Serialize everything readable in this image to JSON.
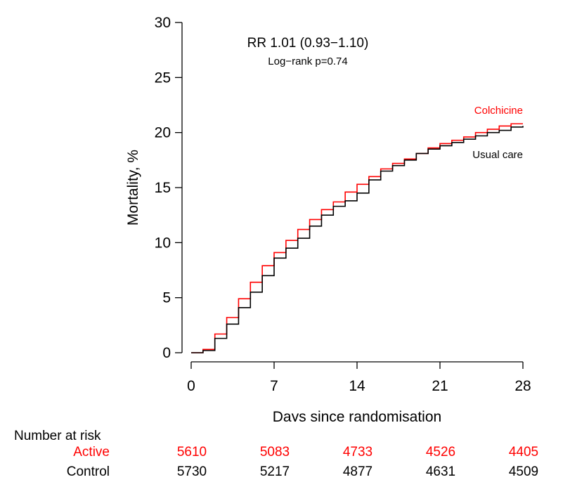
{
  "chart_data": {
    "type": "line",
    "xlabel": "Days since randomisation",
    "ylabel": "Mortality, %",
    "xlim": [
      0,
      28
    ],
    "ylim": [
      0,
      30
    ],
    "x_ticks": [
      0,
      7,
      14,
      21,
      28
    ],
    "y_ticks": [
      0,
      5,
      10,
      15,
      20,
      25,
      30
    ],
    "annotation_main": "RR 1.01 (0.93−1.10)",
    "annotation_sub": "Log−rank p=0.74",
    "step": true,
    "grid": false,
    "series": [
      {
        "name": "Colchicine",
        "color": "#ff0000",
        "x": [
          0,
          1,
          2,
          3,
          4,
          5,
          6,
          7,
          8,
          9,
          10,
          11,
          12,
          13,
          14,
          15,
          16,
          17,
          18,
          19,
          20,
          21,
          22,
          23,
          24,
          25,
          26,
          27,
          28
        ],
        "values": [
          0,
          0.3,
          1.7,
          3.2,
          4.9,
          6.4,
          7.9,
          9.1,
          10.2,
          11.2,
          12.1,
          13.0,
          13.7,
          14.6,
          15.3,
          16.0,
          16.7,
          17.2,
          17.6,
          18.1,
          18.6,
          19.0,
          19.3,
          19.6,
          20.0,
          20.3,
          20.6,
          20.8,
          20.8
        ]
      },
      {
        "name": "Usual care",
        "color": "#000000",
        "x": [
          0,
          1,
          2,
          3,
          4,
          5,
          6,
          7,
          8,
          9,
          10,
          11,
          12,
          13,
          14,
          15,
          16,
          17,
          18,
          19,
          20,
          21,
          22,
          23,
          24,
          25,
          26,
          27,
          28
        ],
        "values": [
          0,
          0.2,
          1.3,
          2.6,
          4.1,
          5.5,
          7.0,
          8.6,
          9.5,
          10.4,
          11.5,
          12.5,
          13.3,
          13.8,
          14.5,
          15.7,
          16.5,
          17.0,
          17.5,
          18.1,
          18.5,
          18.8,
          19.1,
          19.4,
          19.7,
          20.0,
          20.2,
          20.5,
          20.6
        ]
      }
    ]
  },
  "risk_table": {
    "title": "Number at risk",
    "rows": [
      {
        "label": "Active",
        "color": "#ff0000",
        "values": [
          "5610",
          "5083",
          "4733",
          "4526",
          "4405"
        ]
      },
      {
        "label": "Control",
        "color": "#000000",
        "values": [
          "5730",
          "5217",
          "4877",
          "4631",
          "4509"
        ]
      }
    ]
  }
}
